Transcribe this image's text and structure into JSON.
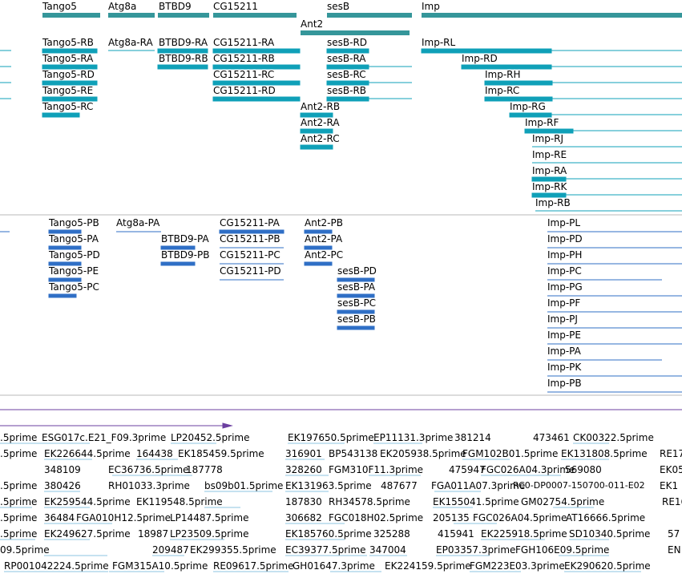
{
  "colors": {
    "gene_fill": "#35969a",
    "transcript_fill": "#0fa0b8",
    "protein_fill": "#2f6fc6",
    "est_fill": "#8ec4e0",
    "divider": "#b8b8b8",
    "purple": "#6b3fa0"
  },
  "genes": [
    "Tango5",
    "Atg8a",
    "BTBD9",
    "CG15211",
    "sesB",
    "Imp",
    "Ant2"
  ],
  "transcripts": [
    "Tango5-RB",
    "Tango5-RA",
    "Tango5-RD",
    "Tango5-RE",
    "Tango5-RC",
    "Atg8a-RA",
    "BTBD9-RA",
    "BTBD9-RB",
    "CG15211-RA",
    "CG15211-RB",
    "CG15211-RC",
    "CG15211-RD",
    "sesB-RD",
    "sesB-RA",
    "sesB-RC",
    "sesB-RB",
    "Ant2-RB",
    "Ant2-RA",
    "Ant2-RC",
    "Imp-RL",
    "Imp-RD",
    "Imp-RH",
    "Imp-RC",
    "Imp-RG",
    "Imp-RF",
    "Imp-RJ",
    "Imp-RE",
    "Imp-RA",
    "Imp-RK",
    "Imp-RB"
  ],
  "proteins": [
    "Tango5-PB",
    "Tango5-PA",
    "Tango5-PD",
    "Tango5-PE",
    "Tango5-PC",
    "Atg8a-PA",
    "BTBD9-PA",
    "BTBD9-PB",
    "CG15211-PA",
    "CG15211-PB",
    "CG15211-PC",
    "CG15211-PD",
    "Ant2-PB",
    "Ant2-PA",
    "Ant2-PC",
    "sesB-PD",
    "sesB-PA",
    "sesB-PC",
    "sesB-PB",
    "Imp-PL",
    "Imp-PD",
    "Imp-PH",
    "Imp-PC",
    "Imp-PG",
    "Imp-PF",
    "Imp-PJ",
    "Imp-PE",
    "Imp-PA",
    "Imp-PK",
    "Imp-PB"
  ],
  "ests": [
    ".5prime",
    "ESG017c.E21_F09.3prime",
    "LP20452.5prime",
    "EK197650.5prime",
    "EP11131.3prime",
    "381214",
    "473461",
    "CK00322.5prime",
    ".5prime",
    "EK226644.5prime",
    "164438",
    "EK185459.5prime",
    "316901",
    "BP543138",
    "EK205938.5prime",
    "FGM102B01.5prime",
    "EK131808.5prime",
    "RE17",
    "348109",
    "EC36736.5prime",
    "187778",
    "328260",
    "FGM310F11.3prime",
    "475947",
    "FGC026A04.3prime",
    "569080",
    "EK05",
    ".5prime",
    "380426",
    "RH01033.3prime",
    "bs09b01.5prime",
    "EK131963.5prime",
    "487677",
    "FGA011A07.3prime",
    "RC0-DP0007-150700-011-E02",
    "EK1",
    ".5prime",
    "EK259544.5prime",
    "EK119548.5prime",
    "187830",
    "RH34578.5prime",
    "EK155041.5prime",
    "GM02754.5prime",
    "RE16",
    ".5prime",
    "36484",
    "FGA010H12.5prime",
    "LP14487.5prime",
    "306682",
    "FGC018H02.5prime",
    "205135",
    "FGC026A04.5prime",
    "AT16666.5prime",
    ".5prime",
    "EK249627.5prime",
    "18987",
    "LP23509.5prime",
    "EK185760.5prime",
    "325288",
    "415941",
    "EK225918.5prime",
    "SD10340.5prime",
    "57",
    "09.5prime",
    "209487",
    "EK299355.5prime",
    "EC39377.5prime",
    "347004",
    "EP03357.3prime",
    "FGH106E09.5prime",
    "EN",
    "RP001042224.5prime",
    "FGM315A10.5prime",
    "RE09617.5prime",
    "GH01647.3prime",
    "EK224159.5prime",
    "FGM223E03.3prime",
    "EK290620.5prime"
  ]
}
